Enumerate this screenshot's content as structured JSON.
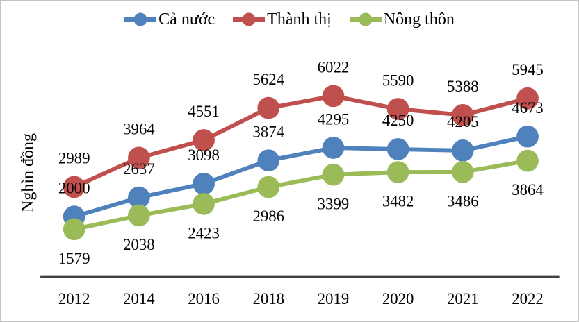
{
  "figure": {
    "background": "#ffffff",
    "border_color": "#c3c3c3"
  },
  "chart_data": {
    "type": "line",
    "categories": [
      "2012",
      "2014",
      "2016",
      "2018",
      "2019",
      "2020",
      "2021",
      "2022"
    ],
    "series": [
      {
        "name": "Cả nước",
        "color": "#4F81BD",
        "values": [
          2000,
          2637,
          3098,
          3874,
          4295,
          4250,
          4205,
          4673
        ],
        "label_position": "above"
      },
      {
        "name": "Thành thị",
        "color": "#C0504D",
        "values": [
          2989,
          3964,
          4551,
          5624,
          6022,
          5590,
          5388,
          5945
        ],
        "label_position": "above"
      },
      {
        "name": "Nông thôn",
        "color": "#9BBB59",
        "values": [
          1579,
          2038,
          2423,
          2986,
          3399,
          3482,
          3486,
          3864
        ],
        "label_position": "below"
      }
    ],
    "title": "",
    "xlabel": "",
    "ylabel": "Nghìn đồng",
    "ylim": [
      0,
      7000
    ],
    "grid": false,
    "data_labels": true,
    "legend_position": "top",
    "axis_color": "#404040",
    "text_color": "#000000"
  }
}
